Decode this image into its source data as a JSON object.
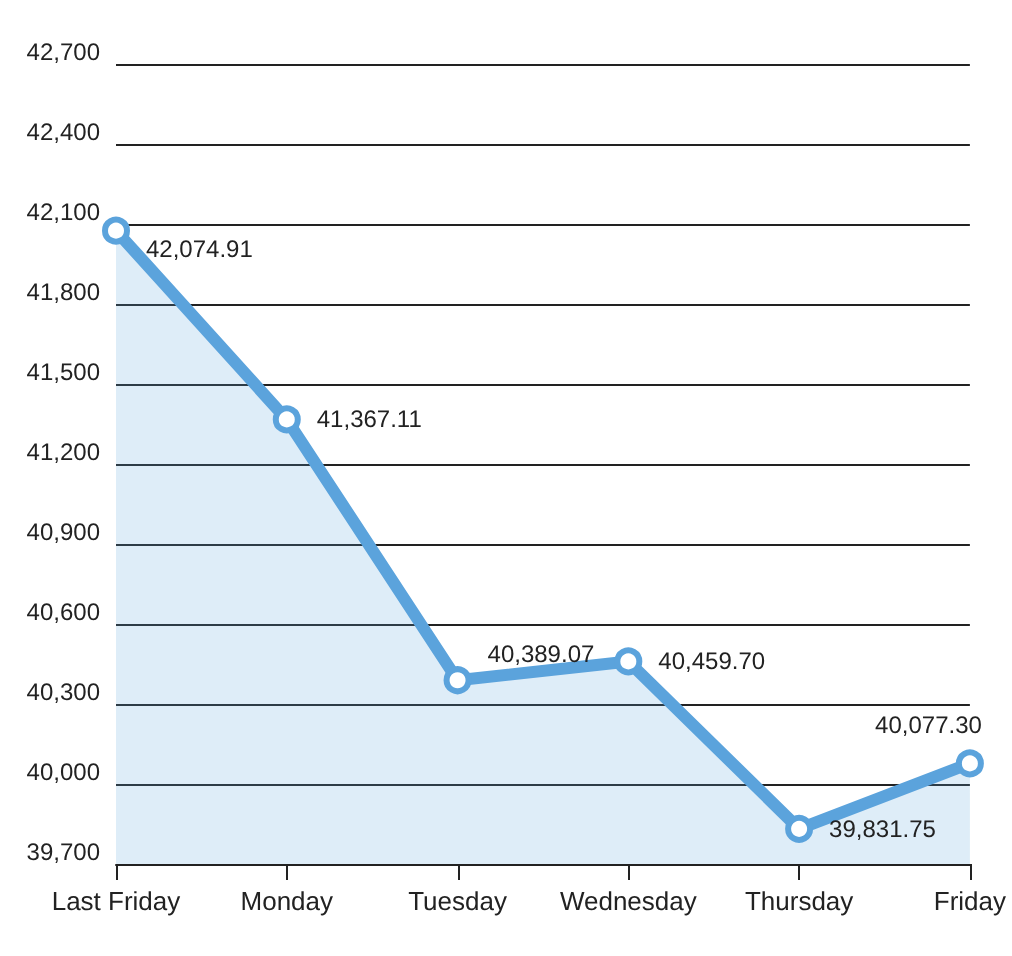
{
  "chart_data": {
    "type": "area",
    "categories": [
      "Last Friday",
      "Monday",
      "Tuesday",
      "Wednesday",
      "Thursday",
      "Friday"
    ],
    "series": [
      {
        "color": "#5ba3dc",
        "values": [
          42074.91,
          41367.11,
          40389.07,
          40459.7,
          39831.75,
          40077.3
        ],
        "value_labels": [
          "42,074.91",
          "41,367.11",
          "40,389.07",
          "40,459.70",
          "39,831.75",
          "40,077.30"
        ]
      }
    ],
    "ylim": [
      39700,
      42700
    ],
    "yticks": [
      {
        "value": 39700,
        "label": "39,700"
      },
      {
        "value": 40000,
        "label": "40,000"
      },
      {
        "value": 40300,
        "label": "40,300"
      },
      {
        "value": 40600,
        "label": "40,600"
      },
      {
        "value": 40900,
        "label": "40,900"
      },
      {
        "value": 41200,
        "label": "41,200"
      },
      {
        "value": 41500,
        "label": "41,500"
      },
      {
        "value": 41800,
        "label": "41,800"
      },
      {
        "value": 42100,
        "label": "42,100"
      },
      {
        "value": 42400,
        "label": "42,400"
      },
      {
        "value": 42700,
        "label": "42,700"
      }
    ],
    "grid": "y",
    "marker": "circle",
    "line_style": "solid"
  }
}
